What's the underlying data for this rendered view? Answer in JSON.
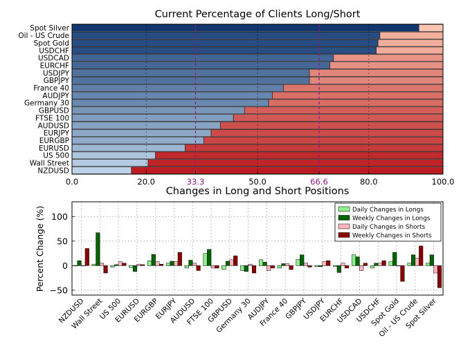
{
  "chart_data": [
    {
      "type": "bar",
      "orientation": "horizontal",
      "stacked": true,
      "title": "Current Percentage of Clients Long/Short",
      "categories": [
        "Spot Silver",
        "Oil - US Crude",
        "Spot Gold",
        "USDCHF",
        "USDCAD",
        "EURCHF",
        "USDJPY",
        "GBPJPY",
        "France 40",
        "AUDJPY",
        "Germany 30",
        "GBPUSD",
        "FTSE 100",
        "AUDUSD",
        "EURJPY",
        "EURGBP",
        "EURUSD",
        "US 500",
        "Wall Street",
        "NZDUSD"
      ],
      "long_values": [
        93.5,
        83.0,
        82.5,
        82.0,
        70.5,
        69.5,
        64.0,
        64.0,
        57.0,
        54.0,
        53.0,
        46.5,
        43.5,
        40.0,
        37.5,
        35.5,
        30.5,
        22.5,
        20.5,
        16.0
      ],
      "xlim": [
        0,
        100
      ],
      "xticks": [
        "0.0",
        "20.0",
        "33.3",
        "50.0",
        "66.6",
        "80.0",
        "100.0"
      ],
      "reference_lines": [
        33.3,
        66.6
      ],
      "grid": true,
      "long_color_light": "#c6dbef",
      "long_color_dark": "#08306b",
      "short_color_light": "#fcc9b4",
      "short_color_dark": "#b8151b",
      "reference_color": "#8b1a8b"
    },
    {
      "type": "bar",
      "title": "Changes in Long and Short Positions",
      "ylabel": "Percent Change (%)",
      "ylim": [
        -60,
        130
      ],
      "yticks": [
        "100",
        "50",
        "0",
        "−50"
      ],
      "grid": true,
      "legend_position": "top-right",
      "categories": [
        "NZDUSD",
        "Wall Street",
        "US 500",
        "EURUSD",
        "EURGBP",
        "EURJPY",
        "AUDUSD",
        "FTSE 100",
        "GBPUSD",
        "Germany 30",
        "AUDJPY",
        "France 40",
        "GBPJPY",
        "USDJPY",
        "EURCHF",
        "USDCAD",
        "USDCHF",
        "Spot Gold",
        "Oil - US Crude",
        "Spot Silver"
      ],
      "series": [
        {
          "name": "Daily Changes in Longs",
          "color": "#90ee90",
          "values": [
            0,
            3,
            -3,
            -4,
            10,
            5,
            -5,
            25,
            -8,
            -10,
            12,
            -5,
            13,
            -2,
            -2,
            22,
            -5,
            8,
            5,
            5
          ]
        },
        {
          "name": "Weekly Changes in Longs",
          "color": "#006400",
          "values": [
            10,
            67,
            2,
            -12,
            23,
            9,
            11,
            33,
            9,
            -12,
            7,
            4,
            22,
            -2,
            -14,
            18,
            5,
            27,
            22,
            22
          ]
        },
        {
          "name": "Daily Changes in Shorts",
          "color": "#ffb6c1",
          "values": [
            0,
            5,
            8,
            3,
            8,
            8,
            5,
            -5,
            12,
            3,
            -10,
            4,
            5,
            8,
            5,
            -10,
            5,
            0,
            15,
            -15
          ]
        },
        {
          "name": "Weekly Changes in Shorts",
          "color": "#8b0000",
          "values": [
            35,
            -15,
            5,
            2,
            3,
            27,
            -10,
            -5,
            20,
            -15,
            -5,
            -8,
            -3,
            10,
            -5,
            5,
            10,
            -32,
            40,
            -45
          ]
        }
      ]
    }
  ]
}
